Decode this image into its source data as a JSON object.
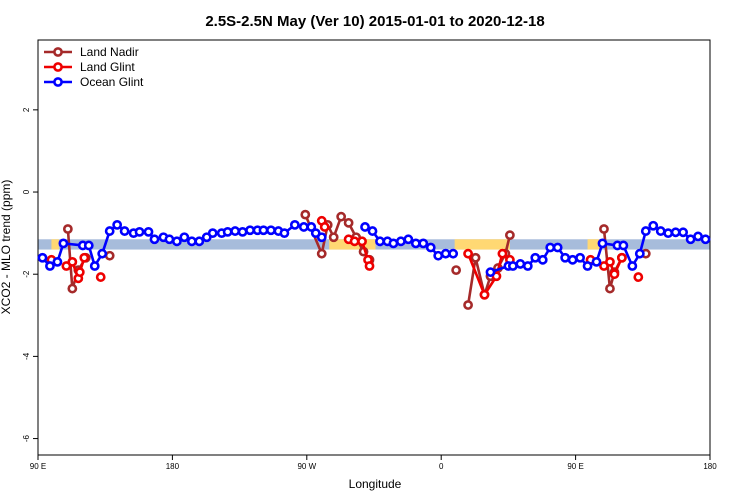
{
  "chart_data": {
    "type": "line",
    "title": "2.5S-2.5N May (Ver 10)   2015-01-01 to 2020-12-18",
    "x_label": "Longitude",
    "y_label": "XCO2 - MLO trend (ppm)",
    "xlim": [
      90,
      540
    ],
    "ylim": [
      -6.4,
      3.7
    ],
    "xticks": [
      {
        "value": 90,
        "label": "90 E"
      },
      {
        "value": 180,
        "label": "180"
      },
      {
        "value": 270,
        "label": "90 W"
      },
      {
        "value": 360,
        "label": "0"
      },
      {
        "value": 450,
        "label": "90 E"
      },
      {
        "value": 540,
        "label": "180"
      }
    ],
    "yticks": [
      -6,
      -4,
      -2,
      0,
      2
    ],
    "legend": "top-left",
    "band": [
      -1.4,
      -1.15
    ],
    "band_color": "#a7bcdb",
    "highlight_color": "#ffd873",
    "highlights": [
      [
        99,
        104
      ],
      [
        285,
        316
      ],
      [
        369,
        406
      ],
      [
        458,
        466
      ]
    ],
    "series": [
      {
        "name": "Land Nadir",
        "color": "#a52a2a",
        "x": [
          110,
          113,
          117,
          122,
          null,
          138,
          null,
          269,
          280,
          284,
          288,
          293,
          298,
          303,
          308,
          312,
          null,
          370,
          null,
          378,
          383,
          389,
          393,
          398,
          403,
          406,
          null,
          469,
          473,
          476,
          481,
          null,
          497
        ],
        "values": [
          -0.9,
          -2.35,
          -1.9,
          -1.6,
          null,
          -1.55,
          null,
          -0.55,
          -1.5,
          -0.8,
          -1.1,
          -0.6,
          -0.75,
          -1.1,
          -1.45,
          -1.65,
          null,
          -1.9,
          null,
          -2.75,
          -1.6,
          -2.5,
          -2.05,
          -1.85,
          -1.5,
          -1.05,
          null,
          -0.9,
          -2.35,
          -1.95,
          -1.6,
          null,
          -1.5
        ]
      },
      {
        "name": "Land Glint",
        "color": "#ee0000",
        "x": [
          99,
          null,
          109,
          113,
          117,
          118,
          121,
          null,
          132,
          null,
          280,
          282,
          null,
          298,
          302,
          307,
          311,
          312,
          null,
          378,
          389,
          397,
          401,
          406,
          null,
          460,
          null,
          469,
          473,
          476,
          481,
          null,
          492
        ],
        "values": [
          -1.65,
          null,
          -1.8,
          -1.7,
          -2.1,
          -1.95,
          -1.6,
          null,
          -2.07,
          null,
          -0.7,
          -0.85,
          null,
          -1.15,
          -1.2,
          -1.2,
          -1.65,
          -1.8,
          null,
          -1.5,
          -2.5,
          -2.05,
          -1.5,
          -1.65,
          null,
          -1.65,
          null,
          -1.8,
          -1.7,
          -2.0,
          -1.6,
          null,
          -2.07
        ]
      },
      {
        "name": "Ocean Glint",
        "color": "#0000ff",
        "x": [
          93,
          98,
          103,
          107,
          120,
          124,
          128,
          133,
          138,
          143,
          148,
          154,
          158,
          164,
          168,
          174,
          178,
          183,
          188,
          193,
          198,
          203,
          207,
          213,
          217,
          222,
          227,
          232,
          237,
          241,
          246,
          251,
          255,
          262,
          268,
          273,
          276,
          280,
          null,
          309,
          314,
          319,
          324,
          328,
          333,
          338,
          343,
          348,
          353,
          358,
          363,
          368,
          null,
          393,
          405,
          408,
          413,
          418,
          423,
          428,
          433,
          438,
          443,
          448,
          453,
          458,
          464,
          468,
          478,
          482,
          488,
          493,
          497,
          502,
          507,
          512,
          517,
          522,
          527,
          532,
          537
        ],
        "values": [
          -1.6,
          -1.8,
          -1.7,
          -1.25,
          -1.3,
          -1.3,
          -1.8,
          -1.5,
          -0.95,
          -0.8,
          -0.95,
          -1.0,
          -0.97,
          -0.97,
          -1.15,
          -1.1,
          -1.15,
          -1.2,
          -1.1,
          -1.2,
          -1.2,
          -1.1,
          -1.0,
          -1.0,
          -0.97,
          -0.95,
          -0.97,
          -0.93,
          -0.93,
          -0.93,
          -0.93,
          -0.95,
          -1.0,
          -0.8,
          -0.85,
          -0.85,
          -1.0,
          -1.1,
          null,
          -0.85,
          -0.95,
          -1.2,
          -1.2,
          -1.25,
          -1.2,
          -1.15,
          -1.25,
          -1.25,
          -1.35,
          -1.55,
          -1.5,
          -1.5,
          null,
          -1.95,
          -1.8,
          -1.8,
          -1.75,
          -1.8,
          -1.6,
          -1.65,
          -1.35,
          -1.35,
          -1.6,
          -1.65,
          -1.6,
          -1.8,
          -1.7,
          -1.25,
          -1.3,
          -1.3,
          -1.8,
          -1.5,
          -0.95,
          -0.82,
          -0.95,
          -1.0,
          -0.98,
          -0.98,
          -1.15,
          -1.08,
          -1.15
        ]
      }
    ]
  }
}
